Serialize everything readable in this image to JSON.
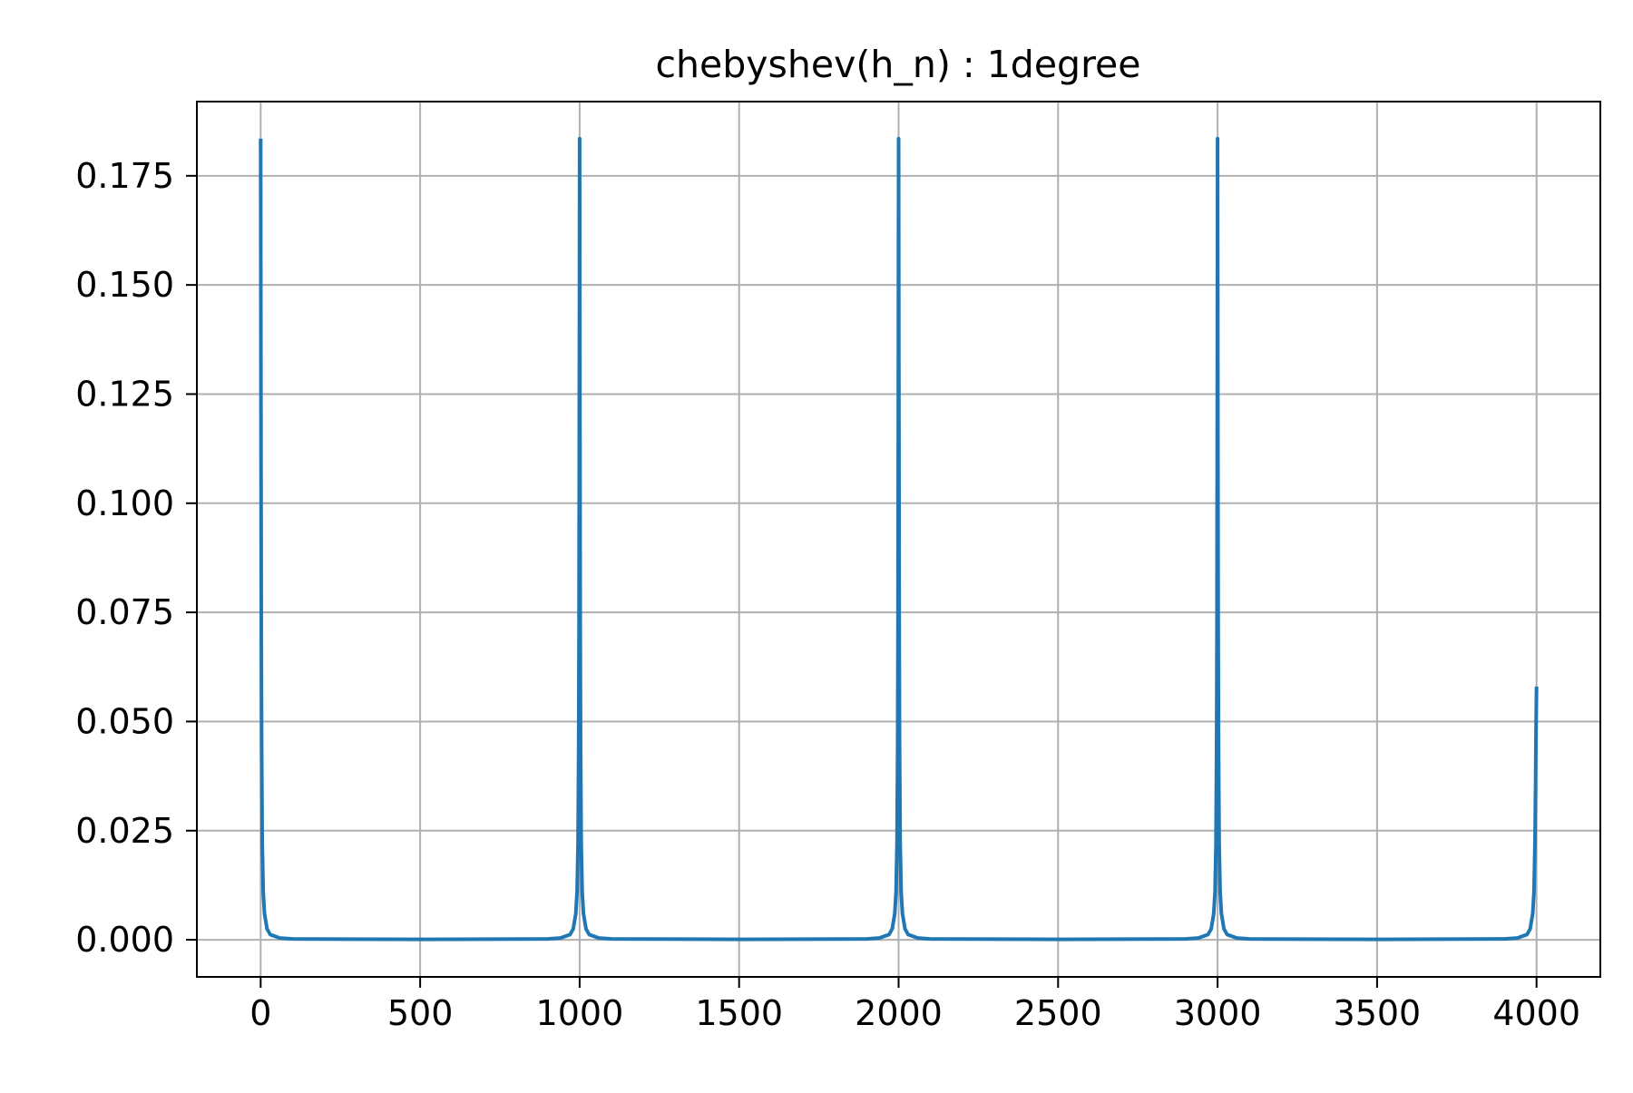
{
  "chart_data": {
    "type": "line",
    "title": "chebyshev(h_n) : 1degree",
    "xlabel": "",
    "ylabel": "",
    "xlim": [
      -200,
      4200
    ],
    "ylim": [
      -0.0085,
      0.192
    ],
    "grid": true,
    "line_color": "#1f77b4",
    "grid_color": "#b0b0b0",
    "x_ticks": [
      0,
      500,
      1000,
      1500,
      2000,
      2500,
      3000,
      3500,
      4000
    ],
    "x_tick_labels": [
      "0",
      "500",
      "1000",
      "1500",
      "2000",
      "2500",
      "3000",
      "3500",
      "4000"
    ],
    "y_ticks": [
      0.0,
      0.025,
      0.05,
      0.075,
      0.1,
      0.125,
      0.15,
      0.175
    ],
    "y_tick_labels": [
      "0.000",
      "0.025",
      "0.050",
      "0.075",
      "0.100",
      "0.125",
      "0.150",
      "0.175"
    ],
    "series": [
      {
        "values_x": [
          0,
          1,
          2,
          3,
          5,
          8,
          12,
          20,
          30,
          60,
          100,
          500,
          900,
          940,
          970,
          980,
          988,
          992,
          995,
          997,
          998,
          999,
          1000,
          1001,
          1002,
          1003,
          1005,
          1008,
          1012,
          1020,
          1030,
          1060,
          1100,
          1500,
          1900,
          1940,
          1970,
          1980,
          1988,
          1992,
          1995,
          1997,
          1998,
          1999,
          2000,
          2001,
          2002,
          2003,
          2005,
          2008,
          2012,
          2020,
          2030,
          2060,
          2100,
          2500,
          2900,
          2940,
          2970,
          2980,
          2988,
          2992,
          2995,
          2997,
          2998,
          2999,
          3000,
          3001,
          3002,
          3003,
          3005,
          3008,
          3012,
          3020,
          3030,
          3060,
          3100,
          3500,
          3900,
          3940,
          3970,
          3980,
          3988,
          3992,
          3995,
          3997,
          3998,
          3999,
          4000
        ],
        "values_y": [
          0.1835,
          0.12,
          0.07,
          0.045,
          0.022,
          0.011,
          0.006,
          0.0025,
          0.0012,
          0.0004,
          0.0002,
          0.0001,
          0.0002,
          0.0004,
          0.0012,
          0.0025,
          0.006,
          0.011,
          0.022,
          0.045,
          0.07,
          0.12,
          0.1835,
          0.12,
          0.07,
          0.045,
          0.022,
          0.011,
          0.006,
          0.0025,
          0.0012,
          0.0004,
          0.0002,
          0.0001,
          0.0002,
          0.0004,
          0.0012,
          0.0025,
          0.006,
          0.011,
          0.022,
          0.045,
          0.07,
          0.12,
          0.1835,
          0.12,
          0.07,
          0.045,
          0.022,
          0.011,
          0.006,
          0.0025,
          0.0012,
          0.0004,
          0.0002,
          0.0001,
          0.0002,
          0.0004,
          0.0012,
          0.0025,
          0.006,
          0.011,
          0.022,
          0.045,
          0.07,
          0.12,
          0.1835,
          0.12,
          0.07,
          0.045,
          0.022,
          0.011,
          0.006,
          0.0025,
          0.0012,
          0.0004,
          0.0002,
          0.0001,
          0.0002,
          0.0004,
          0.0012,
          0.0025,
          0.006,
          0.011,
          0.022,
          0.035,
          0.045,
          0.052,
          0.058
        ]
      }
    ]
  }
}
